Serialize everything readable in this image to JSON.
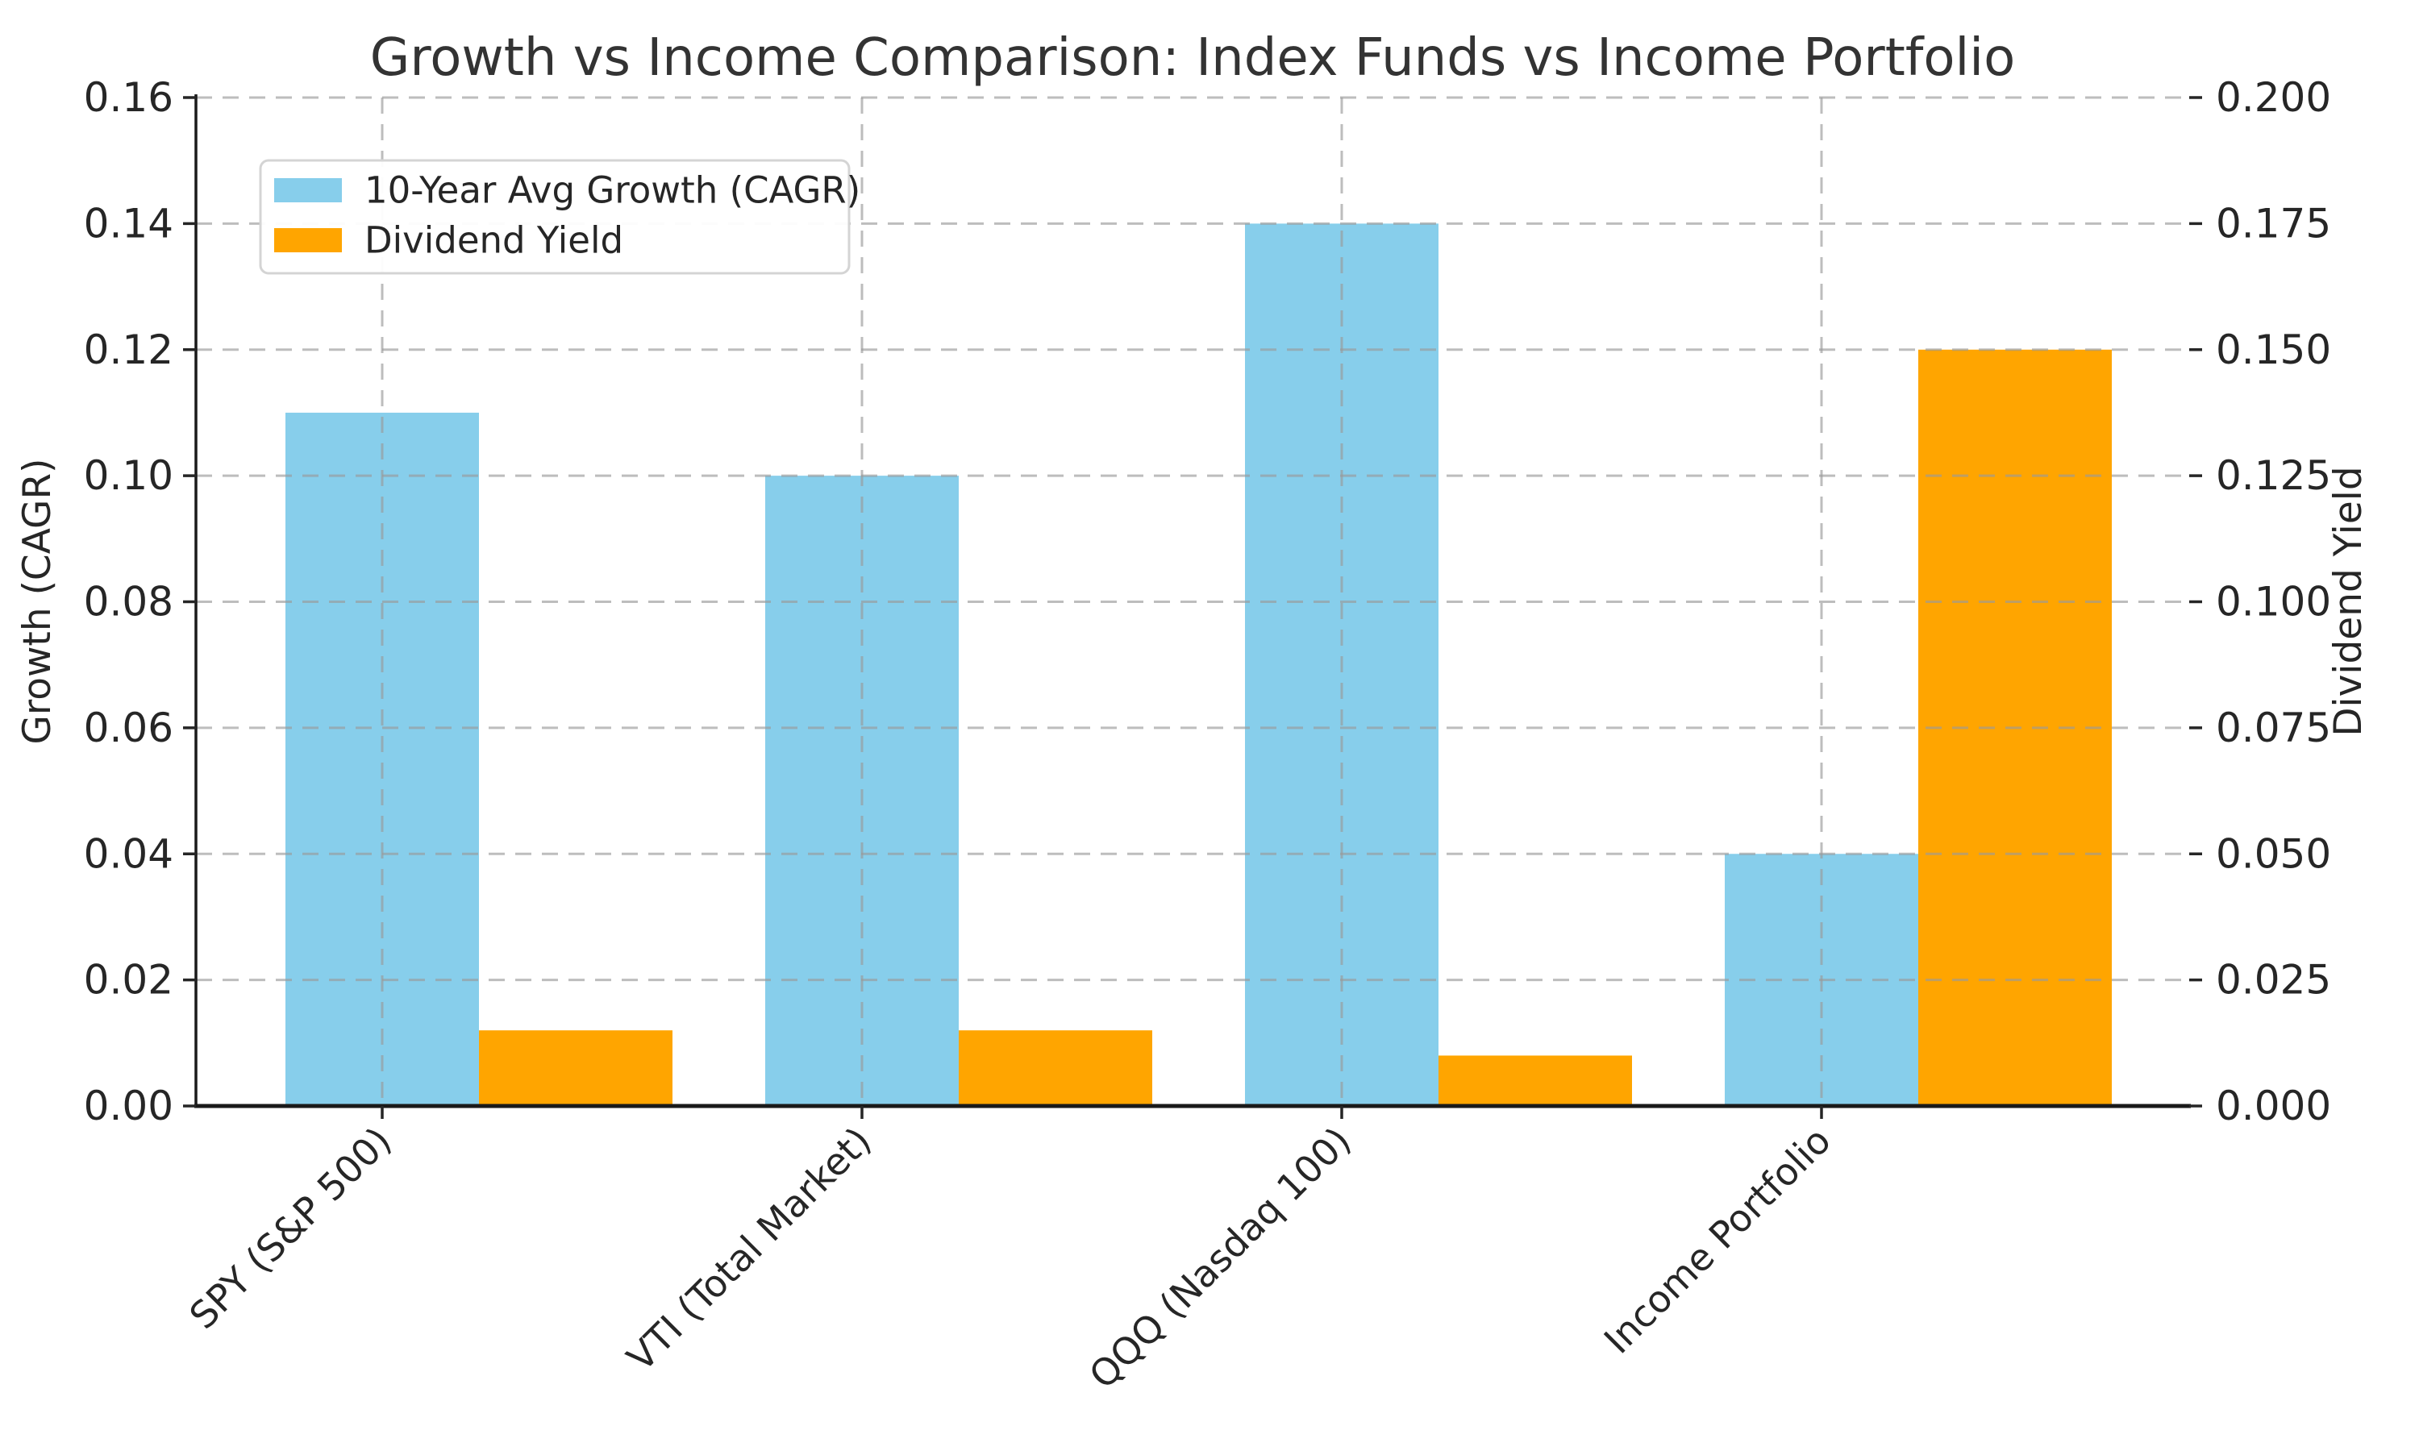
{
  "chart_data": {
    "type": "bar",
    "title": "Growth vs Income Comparison: Index Funds vs Income Portfolio",
    "xlabel": "",
    "ylabel": "Growth (CAGR)",
    "ylabel_right": "Dividend Yield",
    "categories": [
      "SPY (S&P 500)",
      "VTI (Total Market)",
      "QQQ (Nasdaq 100)",
      "Income Portfolio"
    ],
    "series": [
      {
        "name": "10-Year Avg Growth (CAGR)",
        "axis": "left",
        "color": "#87CEEB",
        "values": [
          0.11,
          0.1,
          0.14,
          0.04
        ]
      },
      {
        "name": "Dividend Yield",
        "axis": "right",
        "color": "#FFA500",
        "values": [
          0.015,
          0.015,
          0.01,
          0.15
        ]
      }
    ],
    "axis_left": {
      "min": 0.0,
      "max": 0.16,
      "step": 0.02,
      "tick_labels": [
        "0.00",
        "0.02",
        "0.04",
        "0.06",
        "0.08",
        "0.10",
        "0.12",
        "0.14",
        "0.16"
      ]
    },
    "axis_right": {
      "min": 0.0,
      "max": 0.2,
      "step": 0.025,
      "tick_labels": [
        "0.000",
        "0.025",
        "0.050",
        "0.075",
        "0.100",
        "0.125",
        "0.150",
        "0.175",
        "0.200"
      ]
    },
    "grid": "dashed, both directions, drawn over bars",
    "legend_position": "upper-left",
    "styling": {
      "bar_blue": "#87CEEB",
      "bar_orange": "#FFA500",
      "grid_color": "#999999",
      "grid_opacity": 0.65,
      "spine_color": "#1a1a1a",
      "tick_color": "#262626",
      "text_color": "#262626",
      "title_color": "#333333",
      "legend_border": "#d4d4d4",
      "background": "#ffffff"
    }
  }
}
